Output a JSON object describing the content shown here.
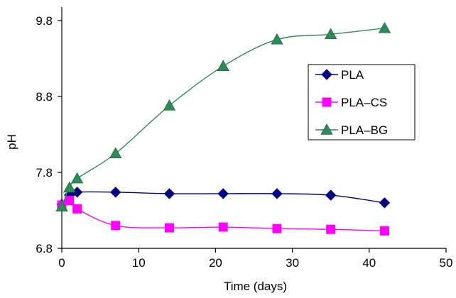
{
  "chart_data": {
    "type": "line",
    "xlabel": "Time (days)",
    "ylabel": "pH",
    "xlim": [
      0,
      50
    ],
    "ylim": [
      6.8,
      10.0
    ],
    "xticks": [
      "0",
      "10",
      "20",
      "30",
      "40",
      "50"
    ],
    "yticks": [
      "6.8",
      "7.8",
      "8.8",
      "9.8"
    ],
    "grid": false,
    "legend_position": "right",
    "series": [
      {
        "name": "PLA",
        "color": "#000080",
        "marker": "diamond",
        "x": [
          0,
          1,
          2,
          7,
          14,
          21,
          28,
          35,
          42
        ],
        "y": [
          7.38,
          7.5,
          7.54,
          7.54,
          7.52,
          7.52,
          7.52,
          7.5,
          7.4
        ]
      },
      {
        "name": "PLA–CS",
        "color": "#ff00ff",
        "marker": "square",
        "x": [
          0,
          1,
          2,
          7,
          14,
          21,
          28,
          35,
          42
        ],
        "y": [
          7.37,
          7.43,
          7.32,
          7.1,
          7.07,
          7.08,
          7.06,
          7.05,
          7.03
        ]
      },
      {
        "name": "PLA–BG",
        "color": "#2e8b57",
        "marker": "triangle",
        "x": [
          0,
          1,
          2,
          7,
          14,
          21,
          28,
          35,
          42
        ],
        "y": [
          7.35,
          7.6,
          7.72,
          8.05,
          8.68,
          9.2,
          9.55,
          9.62,
          9.7
        ]
      }
    ]
  }
}
